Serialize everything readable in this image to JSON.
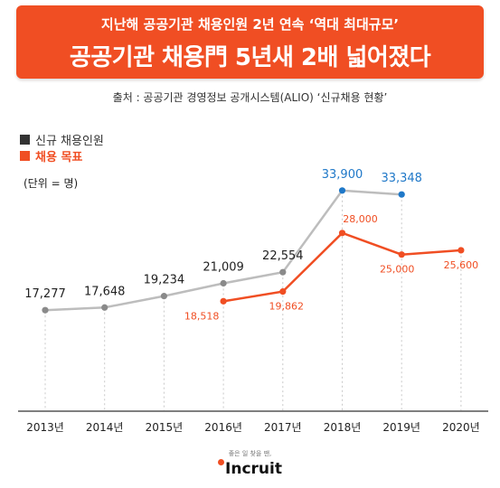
{
  "banner": {
    "subtitle": "지난해 공공기관 채용인원 2년 연속 ‘역대 최대규모’",
    "title": "공공기관 채용門 5년새 2배 넓어졌다"
  },
  "source": "출처 : 공공기관 경영정보 공개시스템(ALIO) ‘신규채용 현황’",
  "unit": "(단위 = 명)",
  "colors": {
    "hires": "#bdbdbd",
    "target": "#f04e23",
    "highlight": "#1f78c8",
    "marker": "#8a8a8a",
    "brand": "#f04e23"
  },
  "chart_data": {
    "type": "line",
    "categories": [
      "2013년",
      "2014년",
      "2015년",
      "2016년",
      "2017년",
      "2018년",
      "2019년",
      "2020년"
    ],
    "series": [
      {
        "name": "신규 채용인원",
        "values": [
          17277,
          17648,
          19234,
          21009,
          22554,
          33900,
          33348,
          null
        ],
        "labels": [
          "17,277",
          "17,648",
          "19,234",
          "21,009",
          "22,554",
          "33,900",
          "33,348",
          null
        ]
      },
      {
        "name": "채용 목표",
        "values": [
          null,
          null,
          null,
          18518,
          19862,
          28000,
          25000,
          25600
        ],
        "labels": [
          null,
          null,
          null,
          "18,518",
          "19,862",
          "28,000",
          "25,000",
          "25,600"
        ]
      }
    ],
    "unit": "명",
    "legend": "top-left",
    "grid": "vertical dotted lines"
  },
  "footer": {
    "tagline": "좋은 일 찾을 땐,",
    "logo": "Incruit"
  }
}
